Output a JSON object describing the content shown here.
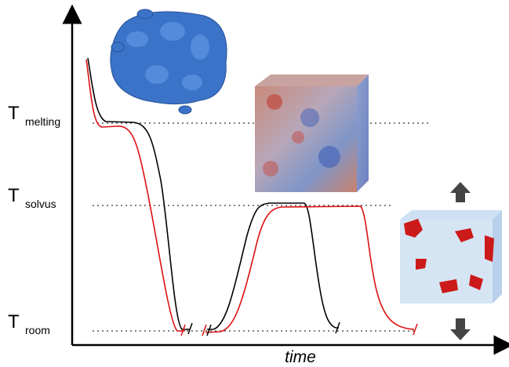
{
  "levels": [
    {
      "symbol": "T",
      "subscript": "melting"
    },
    {
      "symbol": "T",
      "subscript": "solvus"
    },
    {
      "symbol": "T",
      "subscript": "room"
    }
  ],
  "x_axis_label": "time"
}
